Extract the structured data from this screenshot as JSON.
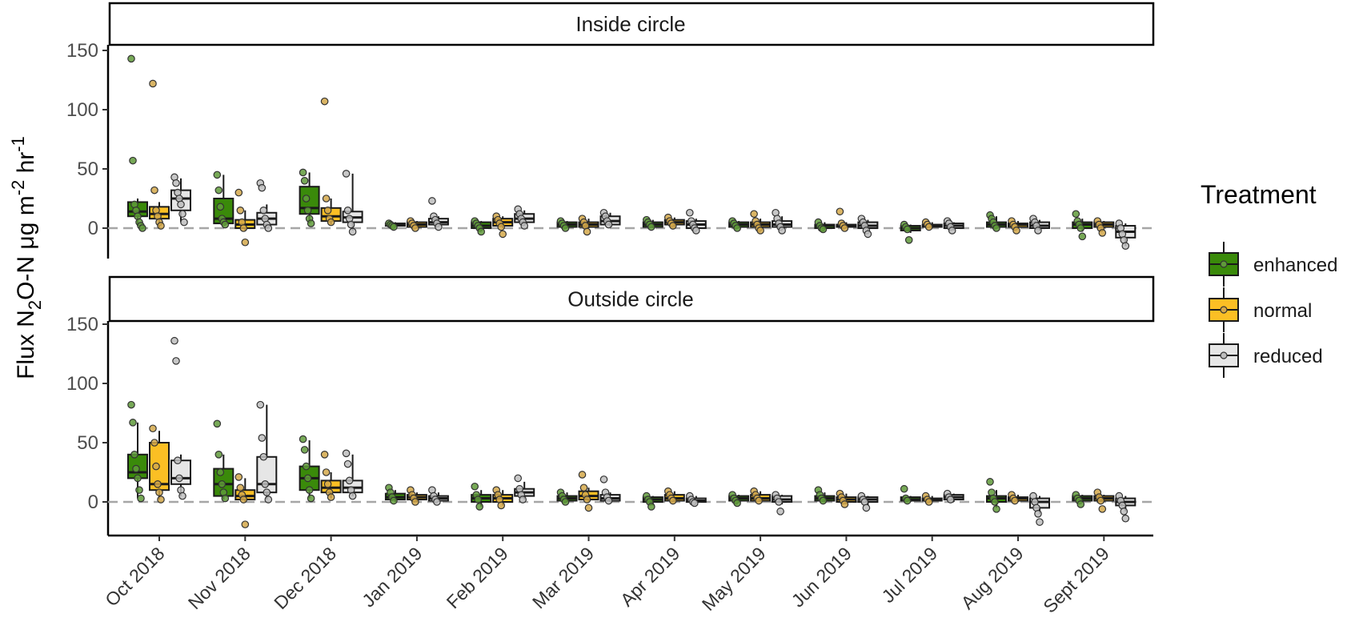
{
  "chart_data": {
    "type": "boxplot",
    "ylabel": {
      "prefix": "Flux N",
      "sub": "2",
      "middle": "O-N μg m",
      "sup1": "-2",
      "mid2": " hr",
      "sup2": "-1"
    },
    "categories": [
      "Oct 2018",
      "Nov 2018",
      "Dec 2018",
      "Jan 2019",
      "Feb 2019",
      "Mar 2019",
      "Apr 2019",
      "May 2019",
      "Jun 2019",
      "Jul 2019",
      "Aug 2019",
      "Sept 2019"
    ],
    "yticks": [
      0,
      50,
      100,
      150
    ],
    "ylim": [
      -25,
      155
    ],
    "reference_line": 0,
    "legend": {
      "title": "Treatment",
      "position": "right",
      "entries": [
        {
          "label": "enhanced",
          "color": "#3a8a0a"
        },
        {
          "label": "normal",
          "color": "#fbbf24"
        },
        {
          "label": "reduced",
          "color": "#e6e6e6"
        }
      ]
    },
    "panels": [
      {
        "label": "Inside circle",
        "series": {
          "enhanced": [
            [
              2,
              10,
              14,
              22,
              25,
              [
                143,
                57,
                20,
                15,
                10,
                5,
                2,
                0
              ]
            ],
            [
              3,
              4,
              8,
              25,
              45,
              [
                45,
                32,
                18,
                8,
                5,
                3
              ]
            ],
            [
              4,
              12,
              17,
              35,
              47,
              [
                47,
                40,
                25,
                15,
                8,
                4
              ]
            ],
            [
              1,
              2,
              3,
              4,
              5,
              [
                4,
                3,
                2,
                1
              ]
            ],
            [
              -2,
              0,
              2,
              5,
              6,
              [
                6,
                4,
                2,
                0,
                -3
              ]
            ],
            [
              0,
              1,
              3,
              5,
              6,
              [
                6,
                4,
                2,
                0
              ]
            ],
            [
              0,
              1,
              3,
              5,
              7,
              [
                7,
                5,
                3,
                1
              ]
            ],
            [
              0,
              1,
              3,
              5,
              6,
              [
                6,
                4,
                2,
                0
              ]
            ],
            [
              -1,
              0,
              2,
              3,
              5,
              [
                5,
                2,
                0,
                -1
              ]
            ],
            [
              -4,
              -2,
              0,
              2,
              3,
              [
                3,
                1,
                -1,
                -10
              ]
            ],
            [
              0,
              1,
              3,
              5,
              10,
              [
                11,
                8,
                5,
                2,
                0
              ]
            ],
            [
              -3,
              0,
              3,
              5,
              8,
              [
                12,
                6,
                3,
                0,
                -7
              ]
            ]
          ],
          "normal": [
            [
              0,
              8,
              12,
              18,
              22,
              [
                122,
                32,
                15,
                10,
                5,
                2
              ]
            ],
            [
              -2,
              0,
              3,
              7,
              15,
              [
                30,
                15,
                5,
                0,
                -12
              ]
            ],
            [
              3,
              6,
              10,
              17,
              25,
              [
                107,
                25,
                15,
                8,
                5
              ]
            ],
            [
              0,
              1,
              3,
              5,
              6,
              [
                6,
                4,
                2,
                0
              ]
            ],
            [
              0,
              2,
              5,
              8,
              10,
              [
                10,
                7,
                4,
                1,
                -5
              ]
            ],
            [
              0,
              1,
              3,
              5,
              8,
              [
                8,
                5,
                2,
                -3
              ]
            ],
            [
              1,
              3,
              5,
              7,
              9,
              [
                9,
                6,
                4,
                2
              ]
            ],
            [
              0,
              1,
              3,
              5,
              8,
              [
                12,
                6,
                3,
                0,
                -2
              ]
            ],
            [
              0,
              1,
              2,
              3,
              5,
              [
                14,
                4,
                2,
                0
              ]
            ],
            [
              0,
              1,
              2,
              3,
              5,
              [
                5,
                3,
                1
              ]
            ],
            [
              0,
              1,
              3,
              4,
              6,
              [
                6,
                3,
                1,
                -2
              ]
            ],
            [
              0,
              1,
              3,
              5,
              6,
              [
                6,
                3,
                0,
                -4
              ]
            ]
          ],
          "reduced": [
            [
              5,
              15,
              25,
              32,
              42,
              [
                43,
                38,
                30,
                25,
                20,
                12,
                5
              ]
            ],
            [
              0,
              3,
              8,
              13,
              20,
              [
                38,
                34,
                15,
                8,
                3,
                0
              ]
            ],
            [
              -2,
              5,
              9,
              14,
              46,
              [
                46,
                15,
                8,
                3,
                -3
              ]
            ],
            [
              1,
              3,
              5,
              8,
              10,
              [
                23,
                10,
                7,
                4,
                1
              ]
            ],
            [
              2,
              5,
              8,
              12,
              15,
              [
                16,
                12,
                8,
                5,
                2
              ]
            ],
            [
              1,
              3,
              6,
              10,
              13,
              [
                13,
                10,
                6,
                3
              ]
            ],
            [
              -1,
              0,
              3,
              6,
              8,
              [
                13,
                6,
                3,
                0,
                -2
              ]
            ],
            [
              0,
              1,
              3,
              6,
              10,
              [
                13,
                8,
                4,
                1,
                -2
              ]
            ],
            [
              -3,
              0,
              2,
              5,
              7,
              [
                8,
                5,
                2,
                -2,
                -5
              ]
            ],
            [
              -2,
              0,
              2,
              4,
              5,
              [
                6,
                4,
                1,
                -2
              ]
            ],
            [
              -2,
              0,
              2,
              5,
              7,
              [
                8,
                5,
                2,
                -2
              ]
            ],
            [
              -15,
              -8,
              -3,
              2,
              4,
              [
                4,
                0,
                -5,
                -10,
                -15
              ]
            ]
          ]
        }
      },
      {
        "label": "Outside circle",
        "series": {
          "enhanced": [
            [
              3,
              20,
              25,
              40,
              67,
              [
                82,
                67,
                40,
                28,
                20,
                10,
                3
              ]
            ],
            [
              2,
              5,
              15,
              28,
              40,
              [
                66,
                40,
                25,
                15,
                8,
                3
              ]
            ],
            [
              3,
              10,
              20,
              30,
              52,
              [
                53,
                44,
                30,
                20,
                10,
                3
              ]
            ],
            [
              0,
              2,
              4,
              7,
              10,
              [
                12,
                8,
                4,
                1
              ]
            ],
            [
              -4,
              0,
              3,
              6,
              10,
              [
                13,
                6,
                2,
                -4
              ]
            ],
            [
              0,
              1,
              3,
              5,
              8,
              [
                8,
                5,
                2,
                0
              ]
            ],
            [
              -3,
              0,
              2,
              4,
              5,
              [
                5,
                2,
                0,
                -4
              ]
            ],
            [
              0,
              1,
              3,
              5,
              6,
              [
                6,
                3,
                1,
                -1
              ]
            ],
            [
              0,
              1,
              3,
              5,
              8,
              [
                10,
                6,
                3,
                1
              ]
            ],
            [
              0,
              1,
              2,
              4,
              5,
              [
                11,
                3,
                1
              ]
            ],
            [
              -5,
              0,
              3,
              5,
              10,
              [
                17,
                8,
                3,
                0,
                -6
              ]
            ],
            [
              0,
              1,
              3,
              5,
              6,
              [
                6,
                3,
                1,
                -2
              ]
            ]
          ],
          "normal": [
            [
              2,
              10,
              15,
              50,
              60,
              [
                62,
                50,
                30,
                15,
                8,
                2
              ]
            ],
            [
              0,
              2,
              5,
              10,
              20,
              [
                21,
                12,
                6,
                2,
                -19
              ]
            ],
            [
              3,
              8,
              12,
              18,
              25,
              [
                40,
                25,
                15,
                8,
                4
              ]
            ],
            [
              0,
              2,
              4,
              6,
              8,
              [
                10,
                6,
                3,
                0
              ]
            ],
            [
              -3,
              0,
              3,
              6,
              10,
              [
                10,
                6,
                2,
                -3
              ]
            ],
            [
              0,
              2,
              5,
              9,
              12,
              [
                23,
                12,
                6,
                2,
                -5
              ]
            ],
            [
              0,
              1,
              3,
              6,
              9,
              [
                9,
                6,
                3,
                1
              ]
            ],
            [
              0,
              1,
              3,
              6,
              9,
              [
                9,
                6,
                3,
                1
              ]
            ],
            [
              -2,
              0,
              2,
              4,
              7,
              [
                7,
                4,
                1,
                -2
              ]
            ],
            [
              0,
              1,
              2,
              3,
              5,
              [
                5,
                2,
                0
              ]
            ],
            [
              0,
              1,
              3,
              4,
              6,
              [
                6,
                3,
                1
              ]
            ],
            [
              0,
              1,
              3,
              5,
              6,
              [
                8,
                4,
                1,
                -6
              ]
            ]
          ],
          "reduced": [
            [
              5,
              15,
              20,
              35,
              40,
              [
                136,
                119,
                35,
                20,
                10,
                5
              ]
            ],
            [
              2,
              8,
              15,
              38,
              82,
              [
                82,
                54,
                38,
                15,
                8,
                2
              ]
            ],
            [
              5,
              8,
              12,
              18,
              40,
              [
                41,
                32,
                18,
                10,
                5
              ]
            ],
            [
              0,
              1,
              3,
              5,
              8,
              [
                10,
                5,
                2,
                0
              ]
            ],
            [
              2,
              5,
              8,
              11,
              17,
              [
                20,
                11,
                6,
                2
              ]
            ],
            [
              0,
              1,
              3,
              6,
              8,
              [
                19,
                8,
                4,
                1
              ]
            ],
            [
              -1,
              0,
              1,
              3,
              5,
              [
                5,
                2,
                0,
                -1
              ]
            ],
            [
              -2,
              0,
              2,
              5,
              6,
              [
                6,
                3,
                0,
                -8
              ]
            ],
            [
              -3,
              0,
              2,
              4,
              5,
              [
                5,
                2,
                0,
                -5
              ]
            ],
            [
              0,
              2,
              4,
              6,
              7,
              [
                7,
                4,
                2
              ]
            ],
            [
              -10,
              -5,
              0,
              3,
              5,
              [
                5,
                0,
                -5,
                -10,
                -17
              ]
            ],
            [
              -8,
              -3,
              0,
              3,
              5,
              [
                5,
                1,
                -3,
                -8,
                -14
              ]
            ]
          ]
        }
      }
    ]
  }
}
